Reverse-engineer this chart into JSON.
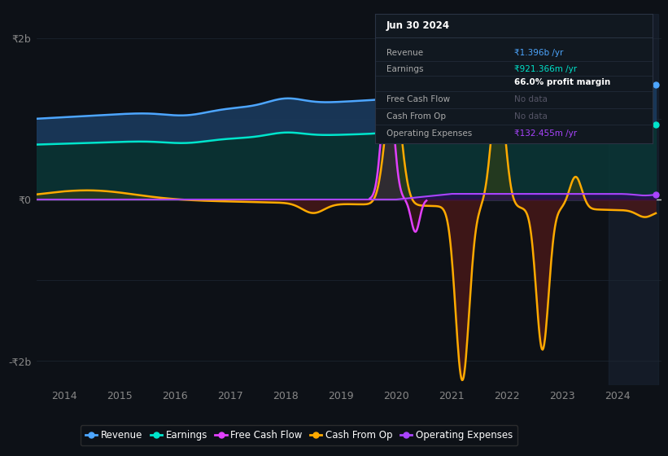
{
  "bg_color": "#0d1117",
  "plot_bg_color": "#0d1117",
  "ylim": [
    -2300000000.0,
    2300000000.0
  ],
  "xlim": [
    2013.5,
    2024.8
  ],
  "ytick_labels": [
    "-₹2b",
    "₹0",
    "₹2b"
  ],
  "xticks": [
    2014,
    2015,
    2016,
    2017,
    2018,
    2019,
    2020,
    2021,
    2022,
    2023,
    2024
  ],
  "grid_color": "#1e2733",
  "zero_line_color": "#cccccc",
  "revenue_color": "#4da6ff",
  "earnings_color": "#00e5cc",
  "fcf_color": "#e040fb",
  "cashfromop_color": "#ffaa00",
  "opex_color": "#aa44ff",
  "infobox_bg": "#111820",
  "infobox_border": "#2a3344",
  "infobox_title": "Jun 30 2024",
  "infobox_rows": [
    {
      "label": "Revenue",
      "value": "₹1.396b /yr",
      "color": "#4da6ff"
    },
    {
      "label": "Earnings",
      "value": "₹921.366m /yr",
      "color": "#00e5cc"
    },
    {
      "label": "",
      "value": "66.0% profit margin",
      "color": "#ffffff"
    },
    {
      "label": "Free Cash Flow",
      "value": "No data",
      "color": "#555566"
    },
    {
      "label": "Cash From Op",
      "value": "No data",
      "color": "#555566"
    },
    {
      "label": "Operating Expenses",
      "value": "₹132.455m /yr",
      "color": "#aa44ff"
    }
  ],
  "legend_labels": [
    "Revenue",
    "Earnings",
    "Free Cash Flow",
    "Cash From Op",
    "Operating Expenses"
  ],
  "legend_colors": [
    "#4da6ff",
    "#00e5cc",
    "#e040fb",
    "#ffaa00",
    "#aa44ff"
  ]
}
